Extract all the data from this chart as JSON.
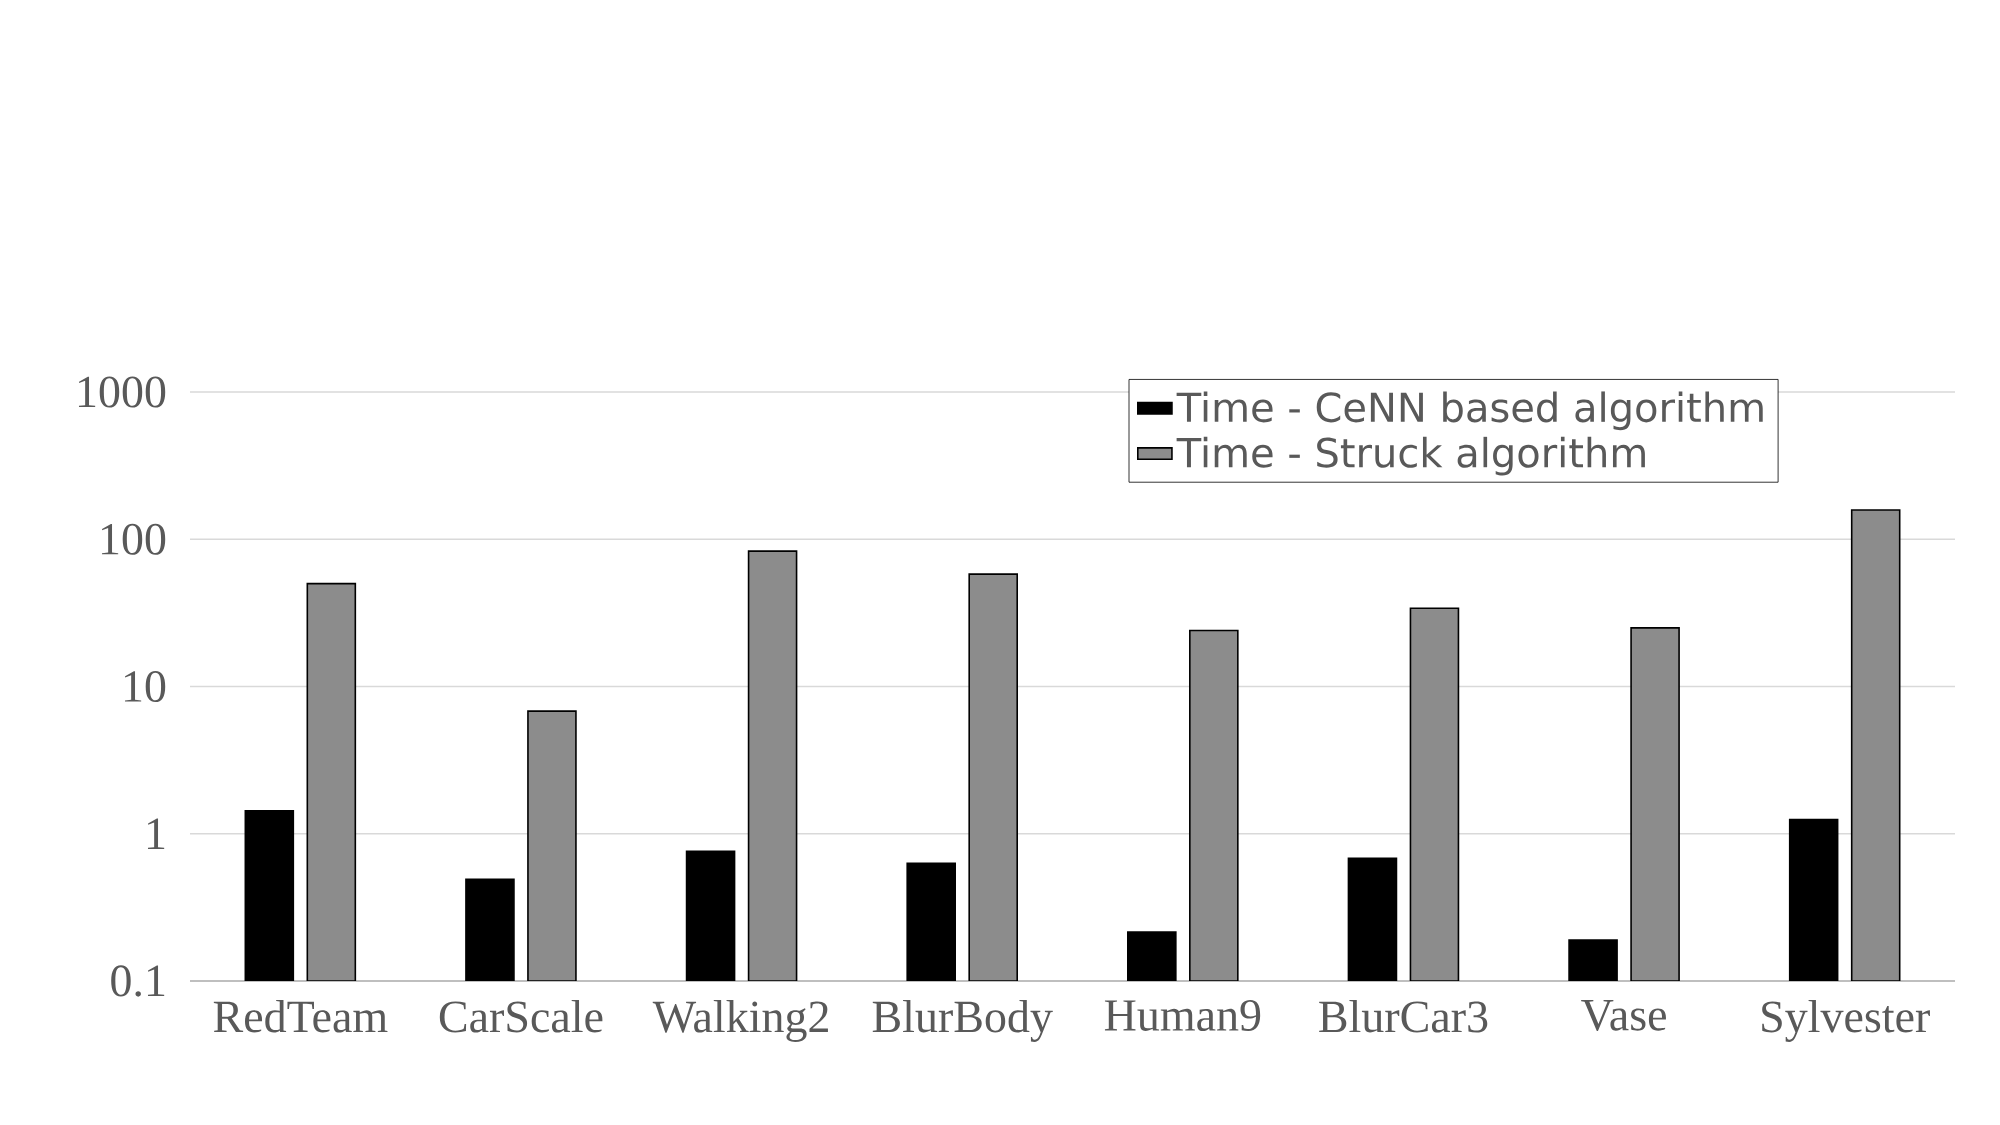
{
  "chart_data": {
    "type": "bar",
    "categories": [
      "RedTeam",
      "CarScale",
      "Walking2",
      "BlurBody",
      "Human9",
      "BlurCar3",
      "Vase",
      "Sylvester"
    ],
    "series": [
      {
        "name": "Time - CeNN based algorithm",
        "color": "#000000",
        "values": [
          1.43,
          0.49,
          0.76,
          0.63,
          0.215,
          0.68,
          0.19,
          1.25
        ]
      },
      {
        "name": "Time - Struck algorithm",
        "color": "#8c8c8c",
        "values": [
          50,
          6.8,
          83,
          58,
          24,
          34,
          25,
          158
        ]
      }
    ],
    "log": "y",
    "ylim": [
      0.1,
      1000
    ],
    "yticks": [
      0.1,
      1,
      10,
      100,
      1000
    ],
    "grid": "y",
    "legend": "top right"
  }
}
